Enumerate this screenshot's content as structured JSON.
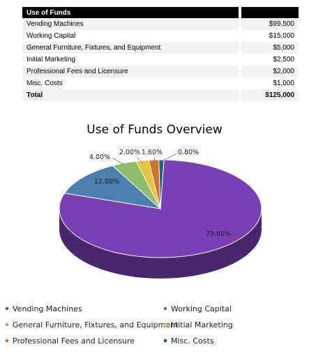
{
  "table": {
    "header": "Use of Funds",
    "rows": [
      {
        "label": "Vending Machines",
        "amount": "$99,500"
      },
      {
        "label": "Working Capital",
        "amount": "$15,000"
      },
      {
        "label": "General Furniture, Fixtures, and Equipment",
        "amount": "$5,000"
      },
      {
        "label": "Initial Marketing",
        "amount": "$2,500"
      },
      {
        "label": "Professional Fees and Licensure",
        "amount": "$2,000"
      },
      {
        "label": "Misc. Costs",
        "amount": "$1,000"
      }
    ],
    "total_label": "Total",
    "total_amount": "$125,000"
  },
  "chart_data": {
    "type": "pie",
    "title": "Use of Funds Overview",
    "slices": [
      {
        "name": "Vending Machines",
        "value": 79.6,
        "label": "79.60%",
        "color": "#7b3fb5"
      },
      {
        "name": "Working Capital",
        "value": 12.0,
        "label": "12.00%",
        "color": "#4a7fb0"
      },
      {
        "name": "General Furniture, Fixtures, and Equipment",
        "value": 4.0,
        "label": "4.00%",
        "color": "#8fbe6a"
      },
      {
        "name": "Initial Marketing",
        "value": 2.0,
        "label": "2.00%",
        "color": "#e6c440"
      },
      {
        "name": "Professional Fees and Licensure",
        "value": 1.6,
        "label": "1.60%",
        "color": "#d2702e"
      },
      {
        "name": "Misc. Costs",
        "value": 0.8,
        "label": "0.80%",
        "color": "#245e7e"
      }
    ],
    "legend_position": "bottom"
  }
}
